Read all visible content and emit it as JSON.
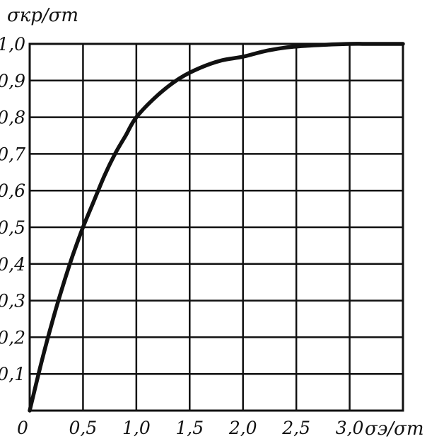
{
  "chart_data": {
    "type": "line",
    "title": "",
    "xlabel": "σэ/σт",
    "ylabel": "σкр/σт",
    "xlim": [
      0,
      3.5
    ],
    "ylim": [
      0,
      1.0
    ],
    "x_ticks": [
      0,
      0.5,
      1.0,
      1.5,
      2.0,
      2.5,
      3.0
    ],
    "x_tick_labels": [
      "0",
      "0,5",
      "1,0",
      "1,5",
      "2,0",
      "2,5",
      "3,0"
    ],
    "y_ticks": [
      0.1,
      0.2,
      0.3,
      0.4,
      0.5,
      0.6,
      0.7,
      0.8,
      0.9,
      1.0
    ],
    "y_tick_labels": [
      "0,1",
      "0,2",
      "0,3",
      "0,4",
      "0,5",
      "0,6",
      "0,7",
      "0,8",
      "0,9",
      "1,0"
    ],
    "grid": true,
    "x_gridlines": [
      0.5,
      1.0,
      1.5,
      2.0,
      2.5,
      3.0
    ],
    "y_gridlines": [
      0.1,
      0.2,
      0.3,
      0.4,
      0.5,
      0.6,
      0.7,
      0.8,
      0.9
    ],
    "colors": {
      "line": "#111111",
      "grid": "#111111",
      "background": "#ffffff"
    },
    "series": [
      {
        "x": [
          0,
          0.1,
          0.2,
          0.3,
          0.4,
          0.5,
          0.6,
          0.7,
          0.8,
          0.9,
          1.0,
          1.2,
          1.4,
          1.6,
          1.8,
          2.0,
          2.2,
          2.4,
          2.6,
          2.8,
          3.0,
          3.2,
          3.5
        ],
        "y": [
          0,
          0.12,
          0.23,
          0.33,
          0.42,
          0.5,
          0.57,
          0.64,
          0.7,
          0.75,
          0.8,
          0.86,
          0.905,
          0.935,
          0.955,
          0.965,
          0.98,
          0.99,
          0.995,
          0.998,
          1.0,
          1.0,
          1.0
        ]
      }
    ]
  }
}
